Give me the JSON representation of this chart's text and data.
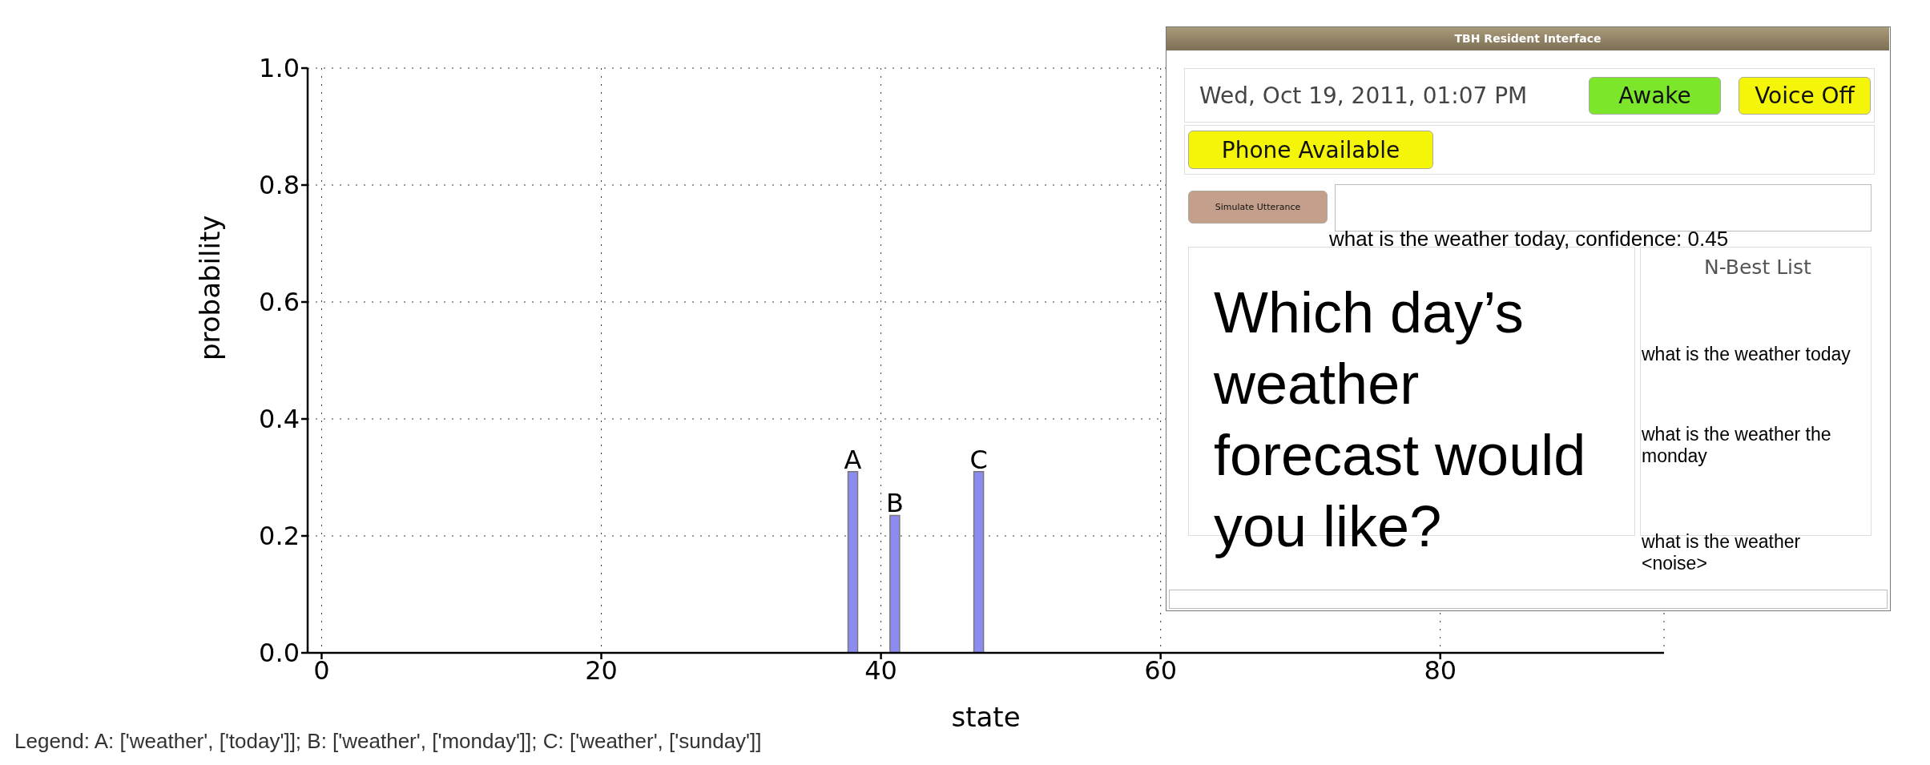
{
  "chart_data": [
    {
      "type": "bar",
      "xlabel": "state",
      "ylabel": "probability",
      "x": [
        38,
        41,
        47
      ],
      "values": [
        0.31,
        0.235,
        0.31
      ],
      "color": "#8c8cf0",
      "value_labels": [
        "A",
        "B",
        "C"
      ],
      "xlim": [
        -1,
        96
      ],
      "xticks": [
        0,
        20,
        40,
        60,
        80
      ],
      "ylim": [
        0,
        1
      ],
      "yticks": [
        {
          "value": 0,
          "label": "0.0"
        },
        {
          "value": 0.2,
          "label": "0.2"
        },
        {
          "value": 0.4,
          "label": "0.4"
        },
        {
          "value": 0.6,
          "label": "0.6"
        },
        {
          "value": 0.8,
          "label": "0.8"
        },
        {
          "value": 1,
          "label": "1.0"
        }
      ],
      "grid": true,
      "annotations": [
        "Legend: A: ['weather', ['today']]; B: ['weather', ['monday']]; C: ['weather', ['sunday']]"
      ]
    },
    {
      "type": "other",
      "title": "TBH Resident Interface",
      "annotations": [
        "Wed, Oct 19, 2011, 01:07 PM",
        "Awake",
        "Voice Off",
        "Phone Available",
        "Simulate Utterance",
        "what is the weather today, confidence: 0.45",
        "Which day’s weather forecast would you like?",
        "N-Best List",
        "what is the weather today",
        "what is the weather the monday",
        "what is the weather <noise>"
      ]
    }
  ]
}
